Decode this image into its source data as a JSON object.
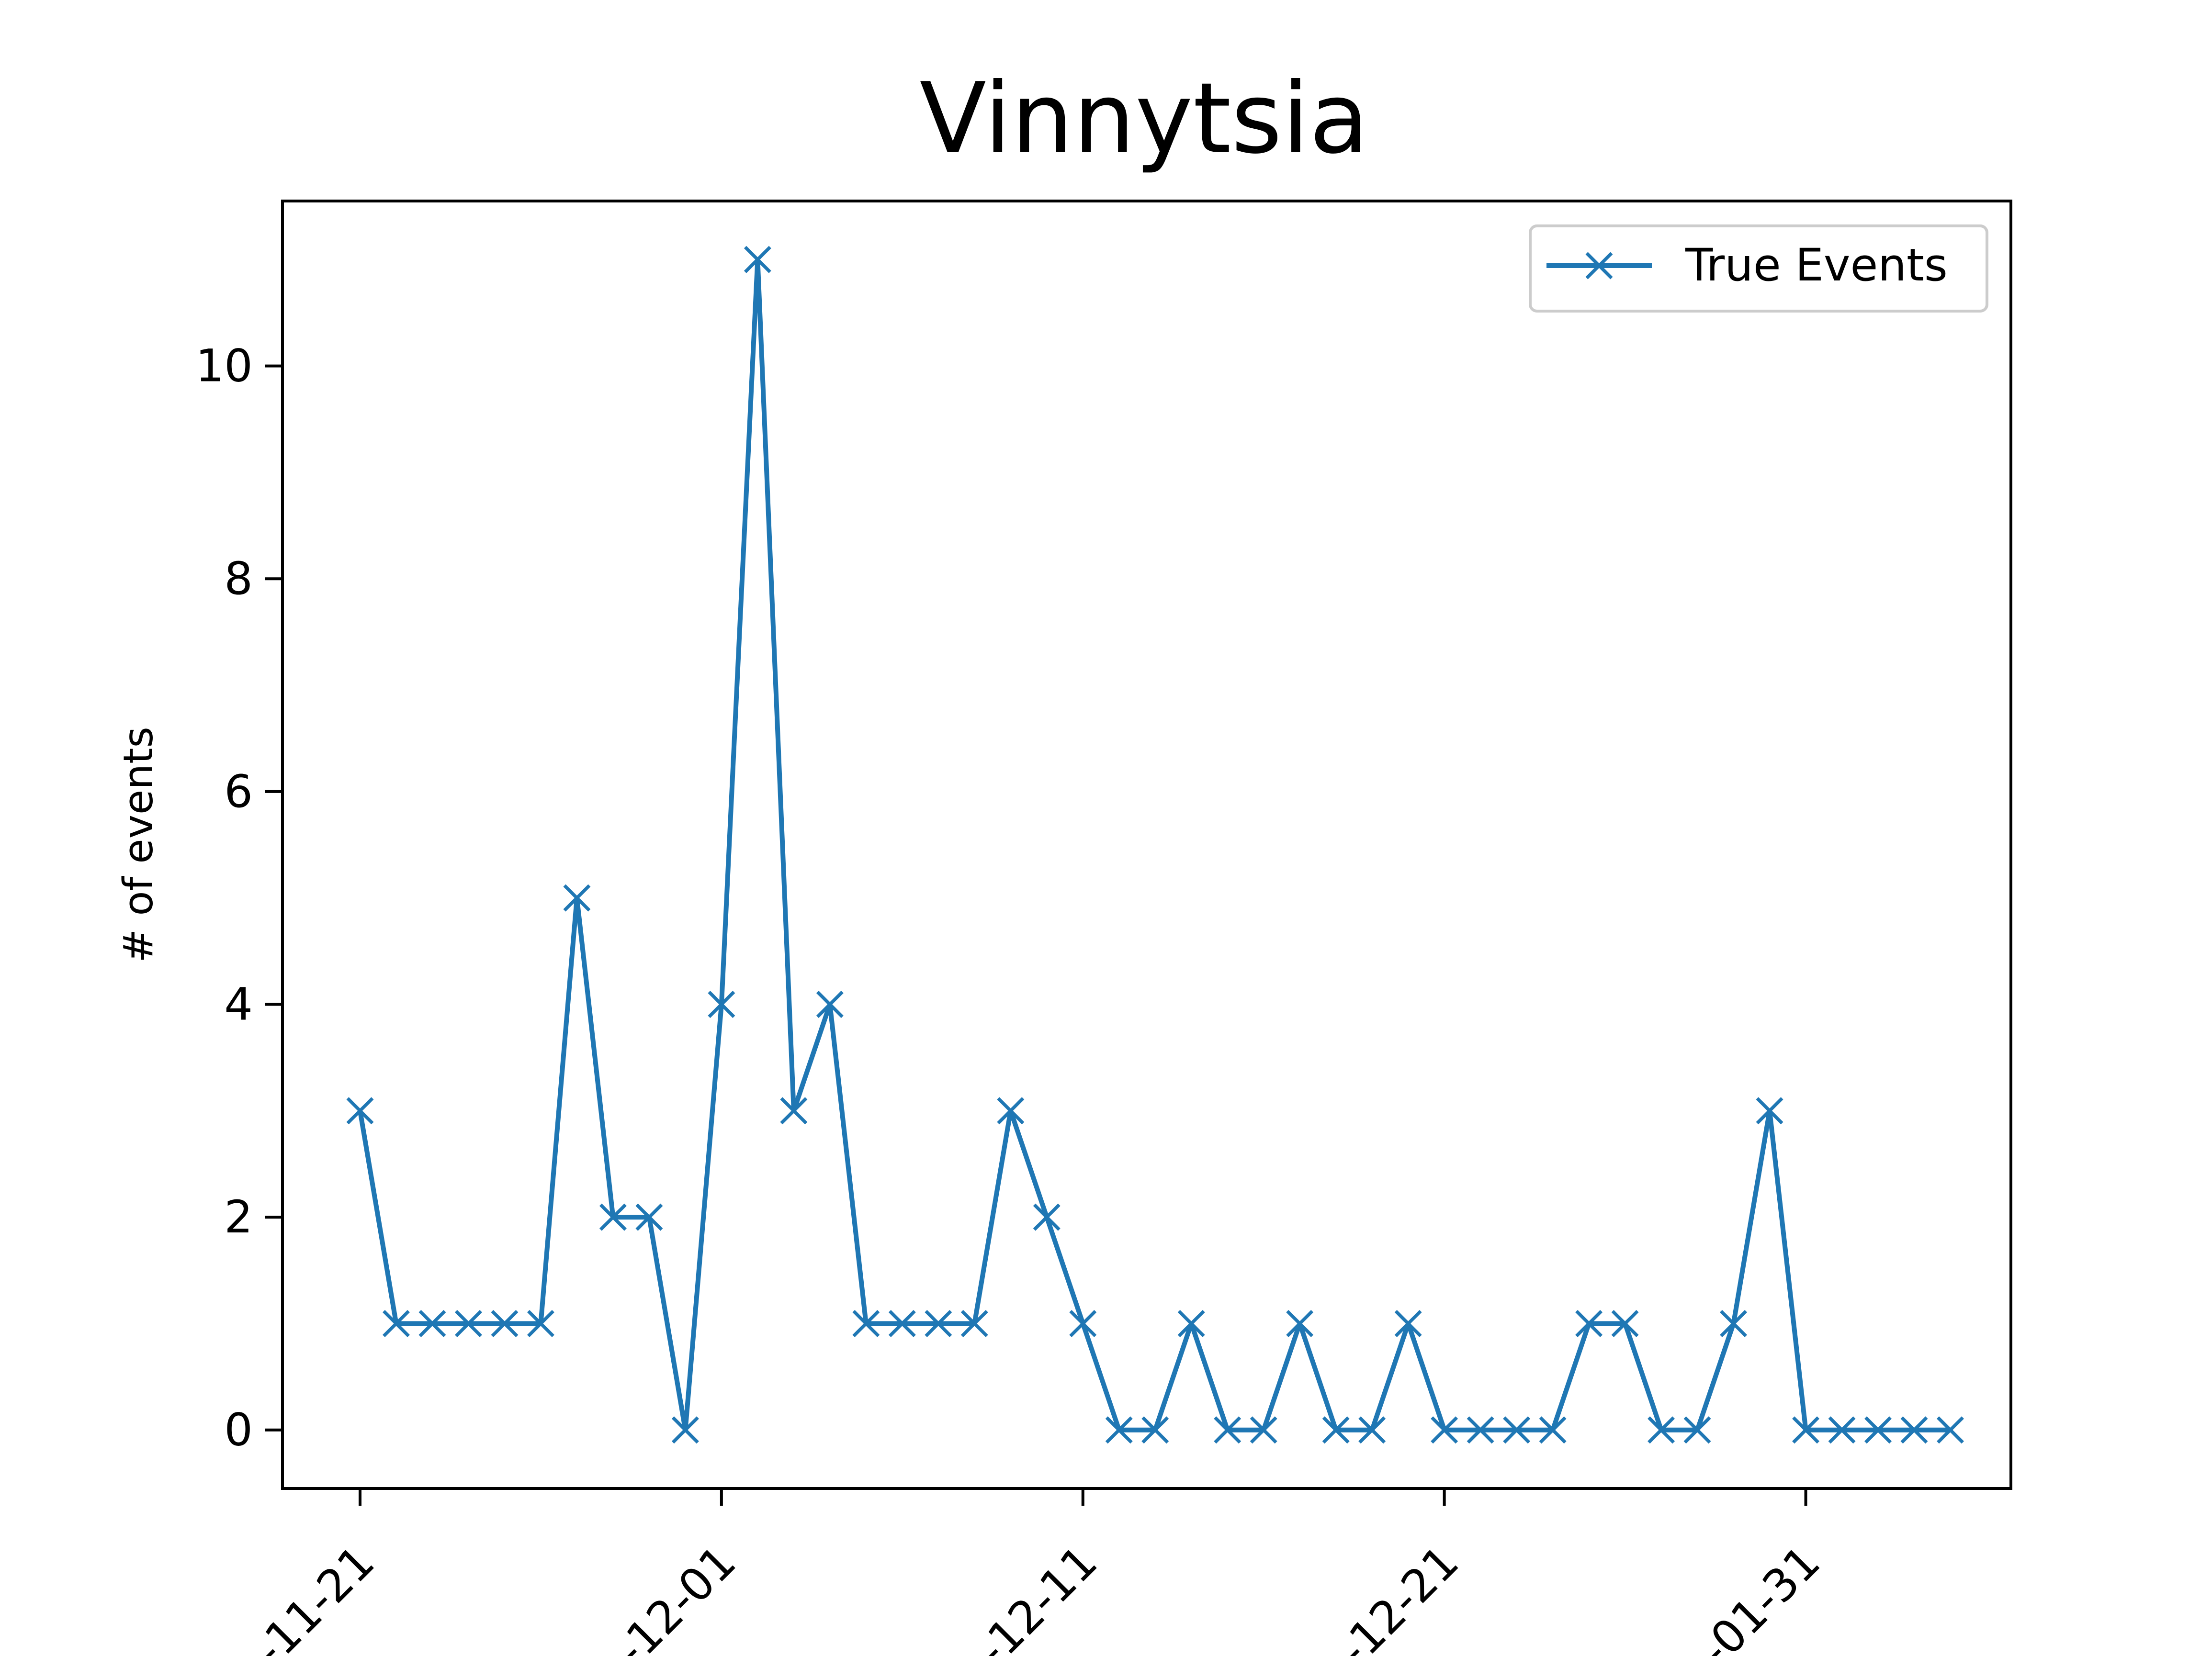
{
  "chart_data": {
    "type": "line",
    "title": "Vinnytsia",
    "xlabel": "",
    "ylabel": "# of events",
    "ylim": [
      -0.55,
      11.55
    ],
    "yticks": [
      0,
      2,
      4,
      6,
      8,
      10
    ],
    "xticks": [
      {
        "pos": 0,
        "label": "-11-21"
      },
      {
        "pos": 10,
        "label": "-12-01"
      },
      {
        "pos": 20,
        "label": "-12-11"
      },
      {
        "pos": 30,
        "label": "-12-21"
      },
      {
        "pos": 40,
        "label": "-01-31"
      }
    ],
    "grid": false,
    "legend": {
      "position": "upper right"
    },
    "series": [
      {
        "name": "True Events",
        "color": "#1f77b4",
        "marker": "x",
        "values": [
          3,
          1,
          1,
          1,
          1,
          1,
          5,
          2,
          2,
          0,
          4,
          11,
          3,
          4,
          1,
          1,
          1,
          1,
          3,
          2,
          1,
          0,
          0,
          1,
          0,
          0,
          1,
          0,
          0,
          1,
          0,
          0,
          0,
          0,
          1,
          1,
          0,
          0,
          1,
          3,
          0,
          0,
          0,
          0,
          0
        ]
      }
    ]
  }
}
